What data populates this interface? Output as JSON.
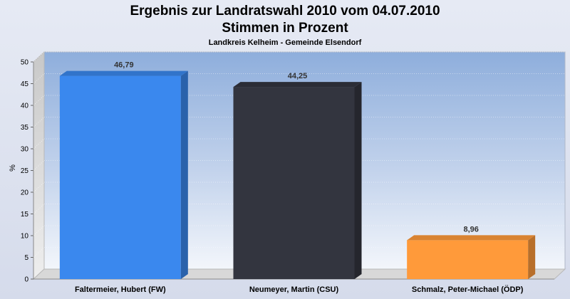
{
  "chart_data": {
    "type": "bar",
    "title": "Ergebnis zur Landratswahl 2010 vom 04.07.2010",
    "title2": "Stimmen in Prozent",
    "subtitle": "Landkreis Kelheim - Gemeinde Elsendorf",
    "ylabel": "%",
    "ylim": [
      0,
      50
    ],
    "yticks": [
      0,
      5,
      10,
      15,
      20,
      25,
      30,
      35,
      40,
      45,
      50
    ],
    "categories": [
      "Faltermeier, Hubert (FW)",
      "Neumeyer, Martin (CSU)",
      "Schmalz, Peter-Michael (ÖDP)"
    ],
    "values": [
      46.79,
      44.25,
      8.96
    ],
    "value_labels": [
      "46,79",
      "44,25",
      "8,96"
    ],
    "colors": [
      "#3a88ee",
      "#33353f",
      "#ff9a3a"
    ],
    "grid": true
  }
}
